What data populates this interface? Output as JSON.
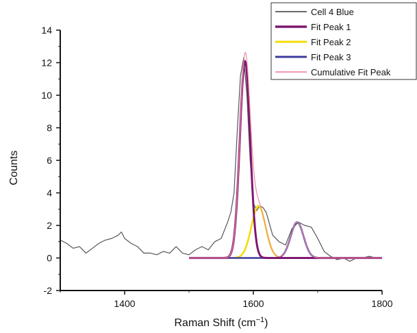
{
  "chart_data": {
    "type": "line",
    "xlabel": "Raman Shift (cm",
    "xlabel_sup": "−1",
    "xlabel_close": ")",
    "ylabel": "Counts",
    "xlim": [
      1300,
      1800
    ],
    "ylim": [
      -2,
      14
    ],
    "xticks": [
      1400,
      1600,
      1800
    ],
    "yticks": [
      -2,
      0,
      2,
      4,
      6,
      8,
      10,
      12,
      14
    ],
    "legend_position": "top-right",
    "grid": false,
    "series": [
      {
        "name": "Cell 4 Blue",
        "color": "#555555",
        "x": [
          1300,
          1310,
          1320,
          1330,
          1340,
          1350,
          1360,
          1370,
          1380,
          1390,
          1395,
          1400,
          1410,
          1420,
          1430,
          1440,
          1450,
          1460,
          1470,
          1480,
          1490,
          1500,
          1510,
          1520,
          1530,
          1540,
          1550,
          1560,
          1565,
          1570,
          1575,
          1580,
          1585,
          1590,
          1595,
          1600,
          1605,
          1610,
          1615,
          1620,
          1625,
          1630,
          1640,
          1650,
          1660,
          1670,
          1680,
          1690,
          1700,
          1710,
          1720,
          1730,
          1740,
          1750,
          1760,
          1770,
          1780,
          1790,
          1800
        ],
        "y": [
          1.1,
          0.9,
          0.6,
          0.7,
          0.3,
          0.6,
          0.9,
          1.1,
          1.2,
          1.4,
          1.6,
          1.2,
          0.9,
          0.7,
          0.3,
          0.3,
          0.2,
          0.4,
          0.3,
          0.7,
          0.3,
          0.2,
          0.5,
          0.7,
          0.5,
          1.0,
          1.2,
          2.2,
          2.8,
          4.0,
          7.8,
          11.2,
          12.3,
          10.0,
          6.0,
          3.4,
          2.9,
          3.2,
          3.1,
          2.8,
          2.1,
          1.4,
          1.0,
          0.8,
          1.8,
          2.2,
          2.0,
          1.9,
          1.2,
          0.4,
          0.1,
          -0.1,
          0.0,
          -0.2,
          0.0,
          0.0,
          0.1,
          0.0,
          0.0
        ]
      },
      {
        "name": "Fit Peak 1",
        "color": "#7d1870",
        "peak": {
          "center": 1587,
          "height": 12.1,
          "sigma": 8
        },
        "x_range": [
          1500,
          1800
        ]
      },
      {
        "name": "Fit Peak 2",
        "color": "#f2dc00",
        "peak": {
          "center": 1608,
          "height": 3.2,
          "sigma": 11
        },
        "x_range": [
          1500,
          1800
        ]
      },
      {
        "name": "Fit Peak 3",
        "color": "#3c3c9c",
        "peak": {
          "center": 1668,
          "height": 2.2,
          "sigma": 10
        },
        "x_range": [
          1500,
          1800
        ]
      },
      {
        "name": "Cumulative Fit Peak",
        "color": "#f08aa0",
        "sum_of": [
          1,
          2,
          3
        ],
        "x_range": [
          1500,
          1800
        ]
      }
    ]
  }
}
